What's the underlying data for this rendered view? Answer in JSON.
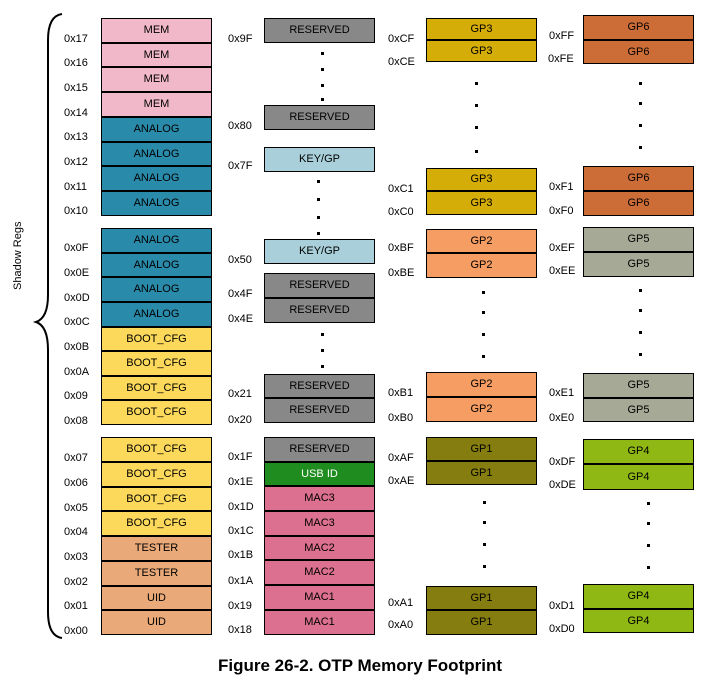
{
  "caption": "Figure 26-2. OTP Memory Footprint",
  "side_label": "Shadow Regs",
  "colors": {
    "MEM": "#f0b8c8",
    "ANALOG": "#2a8aaa",
    "BOOT_CFG": "#fcd95a",
    "TESTER": "#e9a978",
    "UID": "#e9a978",
    "RESERVED": "#888888",
    "KEY_GP": "#a9d0da",
    "USB_ID": "#1f8c1f",
    "MAC": "#dc7090",
    "GP1": "#857d0f",
    "GP2": "#f59d62",
    "GP3": "#d5ad08",
    "GP4": "#8fb814",
    "GP5": "#a5a995",
    "GP6": "#cc6d38"
  },
  "col1": {
    "addresses": [
      "0x17",
      "0x16",
      "0x15",
      "0x14",
      "0x13",
      "0x12",
      "0x11",
      "0x10",
      "0x0F",
      "0x0E",
      "0x0D",
      "0x0C",
      "0x0B",
      "0x0A",
      "0x09",
      "0x08",
      "0x07",
      "0x06",
      "0x05",
      "0x04",
      "0x03",
      "0x02",
      "0x01",
      "0x00"
    ],
    "cells": [
      "MEM",
      "MEM",
      "MEM",
      "MEM",
      "ANALOG",
      "ANALOG",
      "ANALOG",
      "ANALOG",
      "ANALOG",
      "ANALOG",
      "ANALOG",
      "ANALOG",
      "BOOT_CFG",
      "BOOT_CFG",
      "BOOT_CFG",
      "BOOT_CFG",
      "BOOT_CFG",
      "BOOT_CFG",
      "BOOT_CFG",
      "BOOT_CFG",
      "TESTER",
      "TESTER",
      "UID",
      "UID"
    ]
  },
  "col2": {
    "addresses": [
      "0x9F",
      "0x80",
      "0x7F",
      "0x50",
      "0x4F",
      "0x4E",
      "0x21",
      "0x20",
      "0x1F",
      "0x1E",
      "0x1D",
      "0x1C",
      "0x1B",
      "0x1A",
      "0x19",
      "0x18"
    ],
    "cells": [
      "RESERVED",
      "RESERVED",
      "KEY/GP",
      "KEY/GP",
      "RESERVED",
      "RESERVED",
      "RESERVED",
      "RESERVED",
      "RESERVED",
      "USB ID",
      "MAC3",
      "MAC3",
      "MAC2",
      "MAC2",
      "MAC1",
      "MAC1"
    ]
  },
  "col3": {
    "addresses": [
      "0xCF",
      "0xCE",
      "0xC1",
      "0xC0",
      "0xBF",
      "0xBE",
      "0xB1",
      "0xB0",
      "0xAF",
      "0xAE",
      "0xA1",
      "0xA0"
    ],
    "cells": [
      "GP3",
      "GP3",
      "GP3",
      "GP3",
      "GP2",
      "GP2",
      "GP2",
      "GP2",
      "GP1",
      "GP1",
      "GP1",
      "GP1"
    ]
  },
  "col4": {
    "addresses": [
      "0xFF",
      "0xFE",
      "0xF1",
      "0xF0",
      "0xEF",
      "0xEE",
      "0xE1",
      "0xE0",
      "0xDF",
      "0xDE",
      "0xD1",
      "0xD0"
    ],
    "cells": [
      "GP6",
      "GP6",
      "GP6",
      "GP6",
      "GP5",
      "GP5",
      "GP5",
      "GP5",
      "GP4",
      "GP4",
      "GP4",
      "GP4"
    ]
  }
}
